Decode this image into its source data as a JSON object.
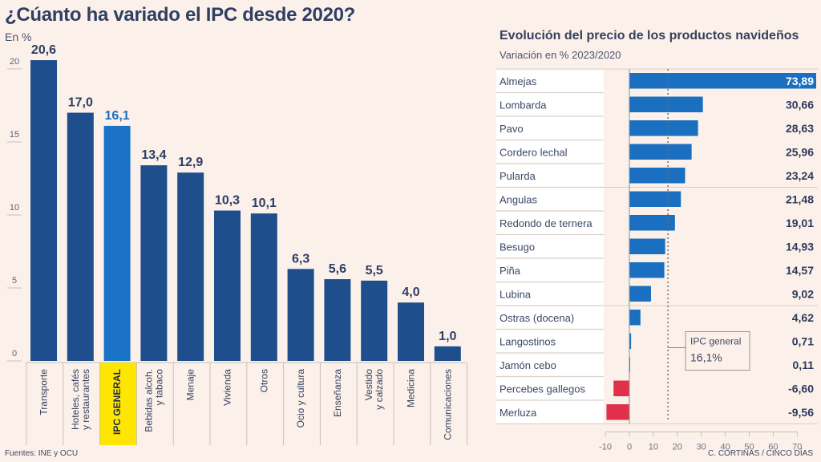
{
  "left": {
    "title": "¿Cúanto ha variado el IPC desde 2020?",
    "unit": "En %",
    "source": "Fuentes: INE y OCU"
  },
  "right": {
    "title": "Evolución del precio de los productos navideños",
    "subtitle": "Variación en % 2023/2020",
    "credit": "C. CORTINAS / CINCO DÍAS",
    "annotation": {
      "label": "IPC general",
      "value_text": "16,1%"
    }
  },
  "colors": {
    "background": "#fcf1ea",
    "bar_dark": "#1f4e8c",
    "bar_highlight": "#1a73c6",
    "bar_positive": "#1a6fc0",
    "bar_negative": "#e0304a",
    "label_highlight_bg": "#ffe600"
  },
  "chart_data": [
    {
      "type": "bar",
      "title": "¿Cúanto ha variado el IPC desde 2020?",
      "ylabel": "En %",
      "xlabel": "",
      "ylim": [
        0,
        21
      ],
      "yticks": [
        0,
        5,
        10,
        15,
        20
      ],
      "categories": [
        "Transporte",
        "Hoteles, cafés y restaurantes",
        "IPC GENERAL",
        "Bebidas alcoh. y tabaco",
        "Menaje",
        "Vivienda",
        "Otros",
        "Ocio y cultura",
        "Enseñanza",
        "Vestido y calzado",
        "Medicina",
        "Comunicaciones"
      ],
      "category_lines": [
        [
          "Transporte"
        ],
        [
          "Hoteles, cafés",
          "y restaurantes"
        ],
        [
          "IPC GENERAL"
        ],
        [
          "Bebidas alcoh.",
          "y tabaco"
        ],
        [
          "Menaje"
        ],
        [
          "Vivienda"
        ],
        [
          "Otros"
        ],
        [
          "Ocio y cultura"
        ],
        [
          "Enseñanza"
        ],
        [
          "Vestido",
          "y calzado"
        ],
        [
          "Medicina"
        ],
        [
          "Comunicaciones"
        ]
      ],
      "values": [
        20.6,
        17.0,
        16.1,
        13.4,
        12.9,
        10.3,
        10.1,
        6.3,
        5.6,
        5.5,
        4.0,
        1.0
      ],
      "value_labels": [
        "20,6",
        "17,0",
        "16,1",
        "13,4",
        "12,9",
        "10,3",
        "10,1",
        "6,3",
        "5,6",
        "5,5",
        "4,0",
        "1,0"
      ],
      "highlight": "IPC GENERAL",
      "grid": false,
      "legend": "none"
    },
    {
      "type": "bar",
      "orientation": "horizontal",
      "title": "Evolución del precio de los productos navideños",
      "subtitle": "Variación en % 2023/2020",
      "xlim": [
        -10,
        70
      ],
      "xticks": [
        -10,
        0,
        10,
        20,
        30,
        40,
        50,
        60,
        70
      ],
      "categories": [
        "Almejas",
        "Lombarda",
        "Pavo",
        "Cordero lechal",
        "Pularda",
        "Angulas",
        "Redondo de ternera",
        "Besugo",
        "Piña",
        "Lubina",
        "Ostras (docena)",
        "Langostinos",
        "Jamón cebo",
        "Percebes gallegos",
        "Merluza"
      ],
      "values": [
        73.89,
        30.66,
        28.63,
        25.96,
        23.24,
        21.48,
        19.01,
        14.93,
        14.57,
        9.02,
        4.62,
        0.71,
        0.11,
        -6.6,
        -9.56
      ],
      "value_labels": [
        "73,89",
        "30,66",
        "28,63",
        "25,96",
        "23,24",
        "21,48",
        "19,01",
        "14,93",
        "14,57",
        "9,02",
        "4,62",
        "0,71",
        "0,11",
        "-6,60",
        "-9,56"
      ],
      "group_breaks_after": [
        4,
        9
      ],
      "reference_line": {
        "value": 16.1,
        "label": "IPC general",
        "value_text": "16,1%"
      },
      "grid": false,
      "legend": "none"
    }
  ]
}
